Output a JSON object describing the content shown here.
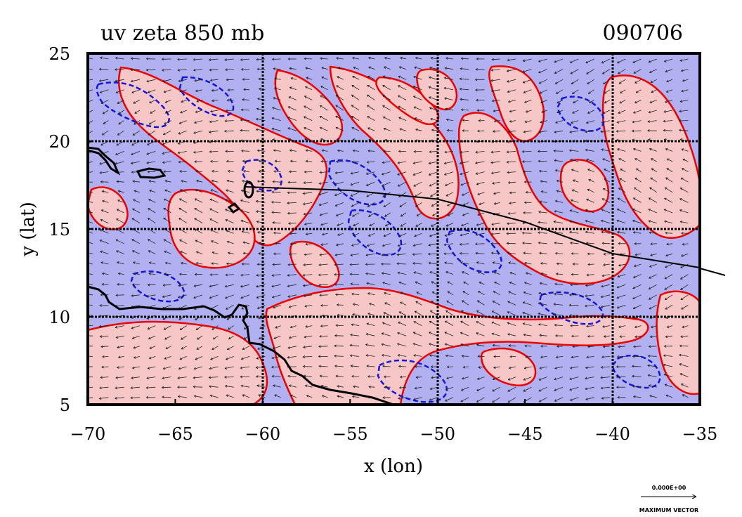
{
  "map": {
    "title": "uv zeta 850 mb",
    "date_label": "090706",
    "x_axis_label": "x (lon)",
    "y_axis_label": "y (lat)",
    "lon_range": [
      -70,
      -35
    ],
    "lat_range": [
      5,
      25
    ],
    "x_ticks": [
      {
        "value": -70,
        "label": "−70"
      },
      {
        "value": -65,
        "label": "−65"
      },
      {
        "value": -60,
        "label": "−60"
      },
      {
        "value": -55,
        "label": "−55"
      },
      {
        "value": -50,
        "label": "−50"
      },
      {
        "value": -45,
        "label": "−45"
      },
      {
        "value": -40,
        "label": "−40"
      },
      {
        "value": -35,
        "label": "−35"
      }
    ],
    "y_ticks": [
      {
        "value": 5,
        "label": "5"
      },
      {
        "value": 10,
        "label": "10"
      },
      {
        "value": 15,
        "label": "15"
      },
      {
        "value": 20,
        "label": "20"
      },
      {
        "value": 25,
        "label": "25"
      }
    ],
    "grid_lines": true,
    "field": "relative vorticity contours with wind vectors",
    "colors": {
      "negative_fill": "#b1b1f2",
      "positive_fill": "#f7c6c6",
      "positive_contour": "#ee0000",
      "negative_contour": "#1515dd",
      "coastline": "#000000",
      "track": "#000000"
    },
    "storm_track_lonlat": [
      [
        -61,
        17.4
      ],
      [
        -55,
        17.2
      ],
      [
        -50,
        16.7
      ],
      [
        -45,
        15.4
      ],
      [
        -40,
        13.6
      ],
      [
        -35,
        12.8
      ],
      [
        -33.5,
        12.2
      ]
    ],
    "reference_vector": {
      "value_label": "0.000E+00",
      "caption": "MAXIMUM VECTOR"
    }
  }
}
